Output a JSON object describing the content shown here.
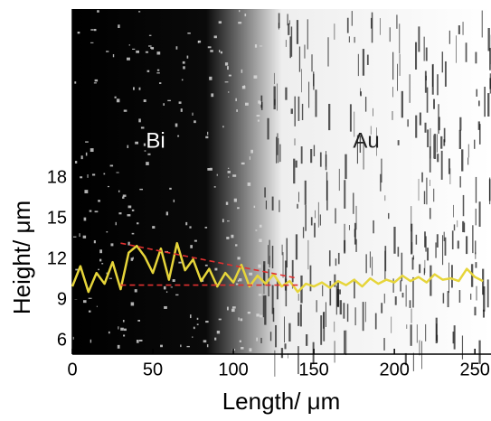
{
  "chart_data": {
    "type": "line",
    "x_label": "Length/ μm",
    "y_label": "Height/ μm",
    "annotations": [
      "Bi",
      "Au"
    ],
    "xlim": [
      0,
      260
    ],
    "xticks": [
      0,
      50,
      100,
      150,
      200,
      250
    ],
    "ylim": [
      5,
      30.5
    ],
    "yticks": [
      6,
      9,
      12,
      15,
      18
    ],
    "series": [
      {
        "color": "#e6d53a",
        "dashed": false,
        "x": [
          0,
          5,
          10,
          15,
          20,
          25,
          30,
          35,
          40,
          45,
          50,
          55,
          60,
          65,
          70,
          75,
          80,
          85,
          90,
          95,
          100,
          105,
          110,
          115,
          120,
          125,
          130,
          135,
          140,
          145,
          150,
          155,
          160,
          165,
          170,
          175,
          180,
          185,
          190,
          195,
          200,
          205,
          210,
          215,
          220,
          225,
          230,
          235,
          240,
          245,
          250,
          255
        ],
        "values": [
          10.0,
          11.5,
          9.6,
          11.0,
          10.2,
          11.8,
          9.8,
          12.5,
          13.0,
          12.2,
          11.0,
          12.8,
          10.5,
          13.2,
          11.2,
          12.0,
          10.4,
          11.3,
          10.0,
          11.0,
          10.3,
          11.6,
          10.0,
          10.8,
          10.2,
          10.9,
          10.0,
          10.4,
          9.6,
          10.2,
          10.0,
          10.3,
          9.9,
          10.4,
          10.1,
          10.5,
          10.0,
          10.6,
          10.2,
          10.5,
          10.3,
          10.8,
          10.4,
          10.7,
          10.3,
          10.9,
          10.5,
          10.6,
          10.4,
          11.3,
          10.7,
          10.4
        ]
      },
      {
        "color": "#e03030",
        "dashed": true,
        "x": [
          30,
          140
        ],
        "values": [
          13.2,
          10.6
        ]
      },
      {
        "color": "#e03030",
        "dashed": true,
        "x": [
          30,
          140
        ],
        "values": [
          10.1,
          10.1
        ]
      }
    ]
  }
}
